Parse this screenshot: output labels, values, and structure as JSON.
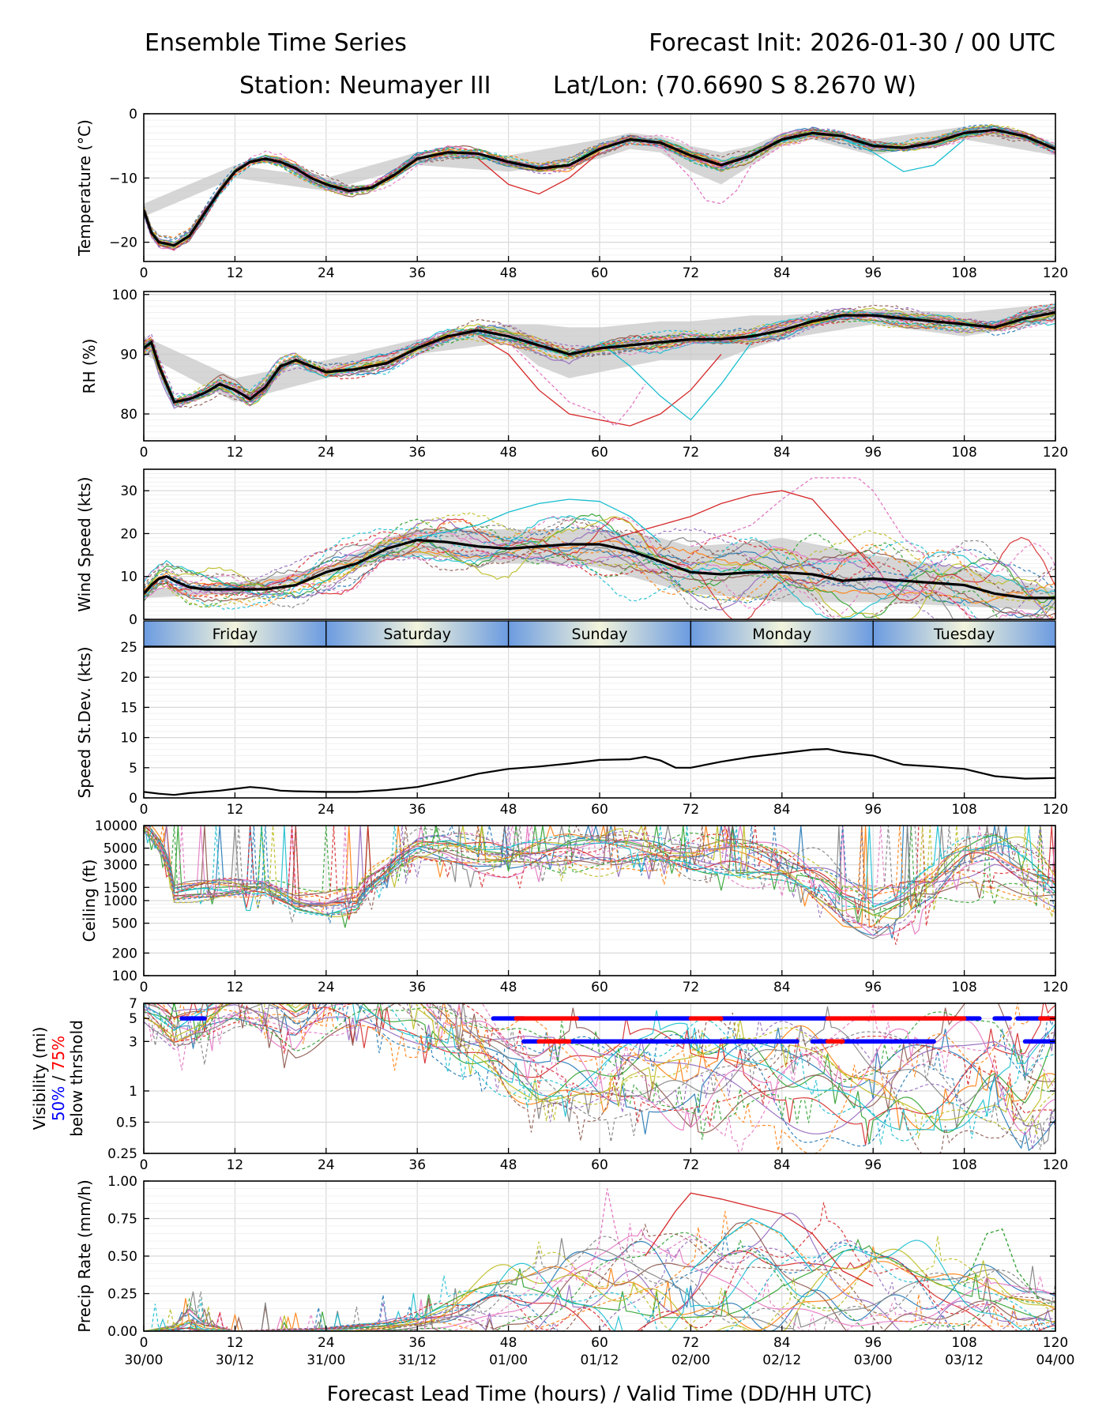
{
  "header": {
    "title_left": "Ensemble Time Series",
    "title_right": "Forecast Init: 2026-01-30 / 00 UTC",
    "station": "Station: Neumayer III",
    "latlon": "Lat/Lon: (70.6690 S 8.2670 W)"
  },
  "x_axis": {
    "label": "Forecast Lead Time (hours) / Valid Time (DD/HH UTC)",
    "range": [
      0,
      120
    ],
    "ticks": [
      "0",
      "12",
      "24",
      "36",
      "48",
      "60",
      "72",
      "84",
      "96",
      "108",
      "120"
    ],
    "valid_times": [
      "30/00",
      "30/12",
      "31/00",
      "31/12",
      "01/00",
      "01/12",
      "02/00",
      "02/12",
      "03/00",
      "03/12",
      "04/00"
    ]
  },
  "day_strip": {
    "days": [
      "Friday",
      "Saturday",
      "Sunday",
      "Monday",
      "Tuesday"
    ],
    "colors": {
      "light": "#f2f4dc",
      "dark": "#6b9be0"
    }
  },
  "colors": {
    "mean": "#000000",
    "spread": "#c8c8c8",
    "vis50": "#0000ff",
    "vis75": "#ff0000",
    "members": [
      "#1f77b4",
      "#ff7f0e",
      "#2ca02c",
      "#d62728",
      "#9467bd",
      "#8c564b",
      "#e377c2",
      "#7f7f7f",
      "#bcbd22",
      "#17becf"
    ]
  },
  "chart_data": [
    {
      "type": "line",
      "id": "temperature",
      "ylabel": "Temperature (°C)",
      "ylim": [
        -23,
        0
      ],
      "yticks": [
        0,
        -10,
        -20
      ],
      "ytick_labels": [
        "0",
        "−10",
        "−20"
      ],
      "mean": {
        "x": [
          0,
          1,
          2,
          4,
          6,
          8,
          10,
          12,
          14,
          16,
          18,
          20,
          22,
          24,
          27,
          30,
          33,
          36,
          40,
          44,
          48,
          52,
          56,
          60,
          64,
          68,
          72,
          76,
          80,
          84,
          88,
          92,
          96,
          100,
          104,
          108,
          112,
          116,
          120
        ],
        "y": [
          -15,
          -18.5,
          -20,
          -20.5,
          -19,
          -15.5,
          -12,
          -9,
          -7.5,
          -7,
          -7.5,
          -8.5,
          -10,
          -11,
          -12,
          -11.5,
          -9.5,
          -7,
          -6,
          -6.2,
          -7.5,
          -8.5,
          -8,
          -5.5,
          -4,
          -4.5,
          -6.5,
          -8,
          -6.5,
          -4,
          -3,
          -3.5,
          -5,
          -5.3,
          -4.5,
          -3,
          -2.5,
          -3.5,
          -5.5
        ]
      },
      "spread": {
        "x": [
          0,
          12,
          24,
          36,
          48,
          60,
          64,
          68,
          72,
          76,
          80,
          84,
          88,
          96,
          108,
          120
        ],
        "upper": [
          -14,
          -8,
          -10,
          -6,
          -6.5,
          -4,
          -3,
          -3.5,
          -5,
          -6,
          -5,
          -3,
          -2.2,
          -4,
          -2,
          -4.5
        ],
        "lower": [
          -16,
          -10,
          -12,
          -8,
          -9,
          -7,
          -5.5,
          -6,
          -9,
          -11,
          -8,
          -5,
          -4,
          -6.5,
          -4,
          -6.5
        ]
      },
      "member_spread": 1.6,
      "outliers": [
        {
          "x": [
            44,
            48,
            52,
            56,
            60
          ],
          "y": [
            -7,
            -11,
            -12.5,
            -10,
            -6
          ]
        },
        {
          "x": [
            68,
            72,
            74,
            76,
            78,
            80,
            84
          ],
          "y": [
            -5,
            -10,
            -13.5,
            -14,
            -12,
            -8,
            -5
          ]
        },
        {
          "x": [
            92,
            96,
            100,
            104,
            108
          ],
          "y": [
            -4,
            -6,
            -9,
            -8,
            -4
          ]
        }
      ]
    },
    {
      "type": "line",
      "id": "rh",
      "ylabel": "RH (%)",
      "ylim": [
        75.5,
        100.5
      ],
      "yticks": [
        100,
        90,
        80
      ],
      "ytick_labels": [
        "100",
        "90",
        "80"
      ],
      "mean": {
        "x": [
          0,
          1,
          2,
          3,
          4,
          6,
          8,
          10,
          12,
          14,
          16,
          18,
          20,
          24,
          28,
          32,
          36,
          40,
          44,
          48,
          52,
          56,
          60,
          64,
          68,
          72,
          76,
          80,
          84,
          88,
          92,
          96,
          100,
          104,
          108,
          112,
          116,
          120
        ],
        "y": [
          91,
          92,
          88,
          85,
          82,
          82.5,
          83.5,
          85,
          84,
          82.5,
          84.5,
          88,
          89,
          87,
          87.5,
          88.5,
          91,
          93,
          94,
          93,
          91.5,
          90,
          91,
          91.5,
          92,
          92.5,
          92.5,
          93,
          94,
          95.5,
          96.5,
          96.5,
          96,
          95.5,
          95,
          94.5,
          96,
          97
        ]
      },
      "spread": {
        "x": [
          0,
          12,
          24,
          36,
          48,
          52,
          56,
          60,
          64,
          68,
          72,
          76,
          80,
          84,
          96,
          108,
          120
        ],
        "upper": [
          93,
          86,
          89,
          92.5,
          95,
          95,
          94.5,
          94.5,
          95,
          95.5,
          95.5,
          96,
          96.5,
          96.5,
          97.5,
          97,
          98.5
        ],
        "lower": [
          90,
          82,
          86,
          90,
          92,
          88,
          86,
          87,
          88,
          89,
          89,
          89,
          91,
          92.5,
          95,
          93,
          95.5
        ]
      },
      "member_spread": 2.2,
      "outliers": [
        {
          "x": [
            44,
            48,
            52,
            56,
            60,
            64,
            68,
            72,
            76
          ],
          "y": [
            93,
            90,
            84,
            80,
            79,
            78,
            80,
            84,
            90
          ]
        },
        {
          "x": [
            48,
            52,
            56,
            60,
            62,
            64,
            66
          ],
          "y": [
            92,
            87,
            82,
            80,
            78,
            81,
            85
          ]
        },
        {
          "x": [
            60,
            64,
            68,
            70,
            72,
            76,
            80
          ],
          "y": [
            92,
            88,
            83,
            81,
            79,
            85,
            92
          ]
        }
      ]
    },
    {
      "type": "line",
      "id": "wind_speed",
      "ylabel": "Wind Speed (kts)",
      "ylim": [
        0,
        35
      ],
      "yticks": [
        30,
        20,
        10,
        0
      ],
      "ytick_labels": [
        "30",
        "20",
        "10",
        "0"
      ],
      "mean": {
        "x": [
          0,
          1,
          2,
          3,
          4,
          6,
          8,
          12,
          16,
          20,
          24,
          28,
          32,
          36,
          40,
          44,
          48,
          52,
          56,
          60,
          64,
          68,
          72,
          76,
          80,
          84,
          88,
          92,
          96,
          100,
          104,
          108,
          112,
          116,
          120
        ],
        "y": [
          6,
          8,
          9.5,
          10,
          9,
          7.5,
          7,
          7,
          7,
          8,
          11,
          13,
          16.5,
          18.5,
          18,
          17,
          16.5,
          17,
          17.5,
          17.5,
          16,
          13.5,
          11,
          10.5,
          11,
          11,
          10.5,
          9,
          9.5,
          9,
          8.5,
          8,
          6,
          5,
          5
        ]
      },
      "spread": {
        "x": [
          0,
          12,
          24,
          32,
          36,
          48,
          56,
          60,
          64,
          68,
          72,
          80,
          84,
          96,
          108,
          120
        ],
        "upper": [
          7,
          8.5,
          12,
          19,
          21,
          21,
          21,
          21,
          20,
          19,
          17,
          18,
          19,
          15,
          12,
          7
        ],
        "lower": [
          5,
          6,
          10,
          14,
          15,
          13,
          13,
          12,
          10,
          8,
          6,
          5,
          4,
          4,
          3,
          2
        ]
      },
      "member_spread": 3,
      "outliers": [
        {
          "x": [
            60,
            64,
            68,
            72,
            76,
            80,
            84,
            88,
            92,
            96
          ],
          "y": [
            18,
            20,
            22,
            24,
            27,
            29,
            30,
            28,
            20,
            12
          ]
        },
        {
          "x": [
            72,
            80,
            84,
            88,
            90,
            94,
            96,
            100,
            104
          ],
          "y": [
            17,
            22,
            28,
            33,
            33,
            33,
            30,
            19,
            13
          ]
        },
        {
          "x": [
            36,
            44,
            48,
            52,
            56,
            60,
            64,
            68
          ],
          "y": [
            19,
            22,
            25,
            27,
            28,
            27.5,
            24,
            18
          ]
        }
      ]
    },
    {
      "type": "line",
      "id": "speed_stdev",
      "ylabel": "Speed St.Dev. (kts)",
      "ylim": [
        0,
        25
      ],
      "yticks": [
        25,
        20,
        15,
        10,
        5,
        0
      ],
      "ytick_labels": [
        "25",
        "20",
        "15",
        "10",
        "5",
        "0"
      ],
      "x": [
        0,
        2,
        4,
        6,
        8,
        10,
        12,
        14,
        16,
        18,
        20,
        24,
        28,
        32,
        36,
        40,
        44,
        48,
        52,
        56,
        60,
        64,
        66,
        68,
        70,
        72,
        76,
        80,
        84,
        88,
        90,
        92,
        96,
        100,
        104,
        108,
        112,
        116,
        120
      ],
      "values": [
        1,
        0.7,
        0.5,
        0.8,
        1,
        1.2,
        1.5,
        1.8,
        1.6,
        1.2,
        1.1,
        1.0,
        1.0,
        1.3,
        1.8,
        2.8,
        4.0,
        4.8,
        5.2,
        5.7,
        6.3,
        6.4,
        6.8,
        6.2,
        5.0,
        5.0,
        6.0,
        6.8,
        7.4,
        8.0,
        8.1,
        7.6,
        7.0,
        5.5,
        5.2,
        4.8,
        3.6,
        3.2,
        3.3
      ]
    },
    {
      "type": "line",
      "id": "ceiling",
      "ylabel": "Ceiling (ft)",
      "yscale": "log",
      "ylim": [
        100,
        10000
      ],
      "yticks": [
        10000,
        5000,
        3000,
        1500,
        1000,
        500,
        200,
        100
      ],
      "ytick_labels": [
        "10000",
        "5000",
        "3000",
        "1500",
        "1000",
        "500",
        "200",
        "100"
      ],
      "member_spread": 0.15,
      "base": {
        "x": [
          0,
          4,
          8,
          12,
          16,
          20,
          24,
          28,
          32,
          36,
          40,
          44,
          48,
          52,
          56,
          60,
          64,
          68,
          72,
          76,
          80,
          84,
          88,
          92,
          96,
          100,
          104,
          108,
          112,
          116,
          120
        ],
        "y": [
          10000,
          1200,
          1400,
          1500,
          1500,
          1000,
          900,
          1000,
          2500,
          5000,
          5000,
          4000,
          3500,
          4000,
          4500,
          4500,
          5000,
          4500,
          4000,
          4000,
          3500,
          3000,
          2000,
          1000,
          700,
          900,
          1500,
          3000,
          3500,
          2500,
          1500
        ]
      }
    },
    {
      "type": "line",
      "id": "visibility",
      "ylabel": "Visibility (mi)",
      "ylabel_line2_a": "50%",
      "ylabel_line2_sep": " / ",
      "ylabel_line2_b": "75%",
      "ylabel_line3": "below thrshold",
      "yscale": "log",
      "ylim": [
        0.25,
        7
      ],
      "yticks": [
        7,
        5,
        3,
        1,
        0.5,
        0.25
      ],
      "ytick_labels": [
        "7",
        "5",
        "3",
        "1",
        "0.5",
        "0.25"
      ],
      "member_spread": 0.25,
      "base": {
        "x": [
          0,
          4,
          8,
          12,
          16,
          20,
          24,
          28,
          32,
          36,
          40,
          44,
          48,
          52,
          56,
          60,
          64,
          68,
          72,
          76,
          80,
          84,
          88,
          92,
          96,
          100,
          104,
          108,
          112,
          116,
          120
        ],
        "y": [
          7,
          4,
          5,
          7,
          6.5,
          4.5,
          6,
          6.5,
          6,
          5,
          4,
          3,
          2,
          1.6,
          1.6,
          1.5,
          1.8,
          1.6,
          1.5,
          1.4,
          1.3,
          1.3,
          1.2,
          1.1,
          1.1,
          1.2,
          1.3,
          1.5,
          1.8,
          1.2,
          2
        ]
      },
      "threshold_50": [
        {
          "y": 5,
          "x_start": 5,
          "x_end": 8
        },
        {
          "y": 5,
          "x_start": 46,
          "x_end": 50
        },
        {
          "y": 5,
          "x_start": 57,
          "x_end": 72
        },
        {
          "y": 5,
          "x_start": 76,
          "x_end": 90
        },
        {
          "y": 5,
          "x_start": 108,
          "x_end": 110
        },
        {
          "y": 5,
          "x_start": 112,
          "x_end": 114
        },
        {
          "y": 5,
          "x_start": 115,
          "x_end": 120
        },
        {
          "y": 3,
          "x_start": 50,
          "x_end": 86
        },
        {
          "y": 3,
          "x_start": 88,
          "x_end": 104
        },
        {
          "y": 3,
          "x_start": 116,
          "x_end": 120
        }
      ],
      "threshold_75": [
        {
          "y": 5,
          "x_start": 49,
          "x_end": 57
        },
        {
          "y": 5,
          "x_start": 72,
          "x_end": 76
        },
        {
          "y": 5,
          "x_start": 90,
          "x_end": 108
        },
        {
          "y": 5,
          "x_start": 118,
          "x_end": 120
        },
        {
          "y": 3,
          "x_start": 52,
          "x_end": 56
        },
        {
          "y": 3,
          "x_start": 90,
          "x_end": 92
        }
      ]
    },
    {
      "type": "line",
      "id": "precip",
      "ylabel": "Precip Rate (mm/h)",
      "ylim": [
        0,
        1
      ],
      "yticks": [
        1,
        0.75,
        0.5,
        0.25,
        0
      ],
      "ytick_labels": [
        "1.00",
        "0.75",
        "0.50",
        "0.25",
        "0.00"
      ],
      "member_spread": 0.12,
      "base": {
        "x": [
          0,
          4,
          6,
          8,
          12,
          24,
          32,
          36,
          40,
          44,
          48,
          52,
          56,
          60,
          64,
          68,
          72,
          76,
          80,
          84,
          88,
          92,
          96,
          100,
          104,
          108,
          112,
          116,
          120
        ],
        "y": [
          0,
          0.02,
          0.08,
          0.03,
          0,
          0.01,
          0.03,
          0.05,
          0.1,
          0.15,
          0.2,
          0.22,
          0.25,
          0.28,
          0.3,
          0.28,
          0.3,
          0.3,
          0.32,
          0.3,
          0.28,
          0.3,
          0.28,
          0.25,
          0.22,
          0.2,
          0.2,
          0.15,
          0.12
        ]
      },
      "outliers": [
        {
          "x": [
            66,
            70,
            72,
            74,
            76,
            80,
            84,
            88,
            92,
            96
          ],
          "y": [
            0.5,
            0.8,
            0.92,
            0.9,
            0.88,
            0.83,
            0.78,
            0.65,
            0.4,
            0.3
          ]
        },
        {
          "x": [
            58,
            60,
            61,
            62,
            64
          ],
          "y": [
            0.3,
            0.6,
            0.95,
            0.7,
            0.3
          ]
        },
        {
          "x": [
            72,
            76,
            80,
            84,
            88
          ],
          "y": [
            0.4,
            0.6,
            0.75,
            0.65,
            0.4
          ]
        },
        {
          "x": [
            108,
            111,
            113,
            115,
            118
          ],
          "y": [
            0.3,
            0.65,
            0.68,
            0.4,
            0.2
          ]
        }
      ]
    }
  ]
}
